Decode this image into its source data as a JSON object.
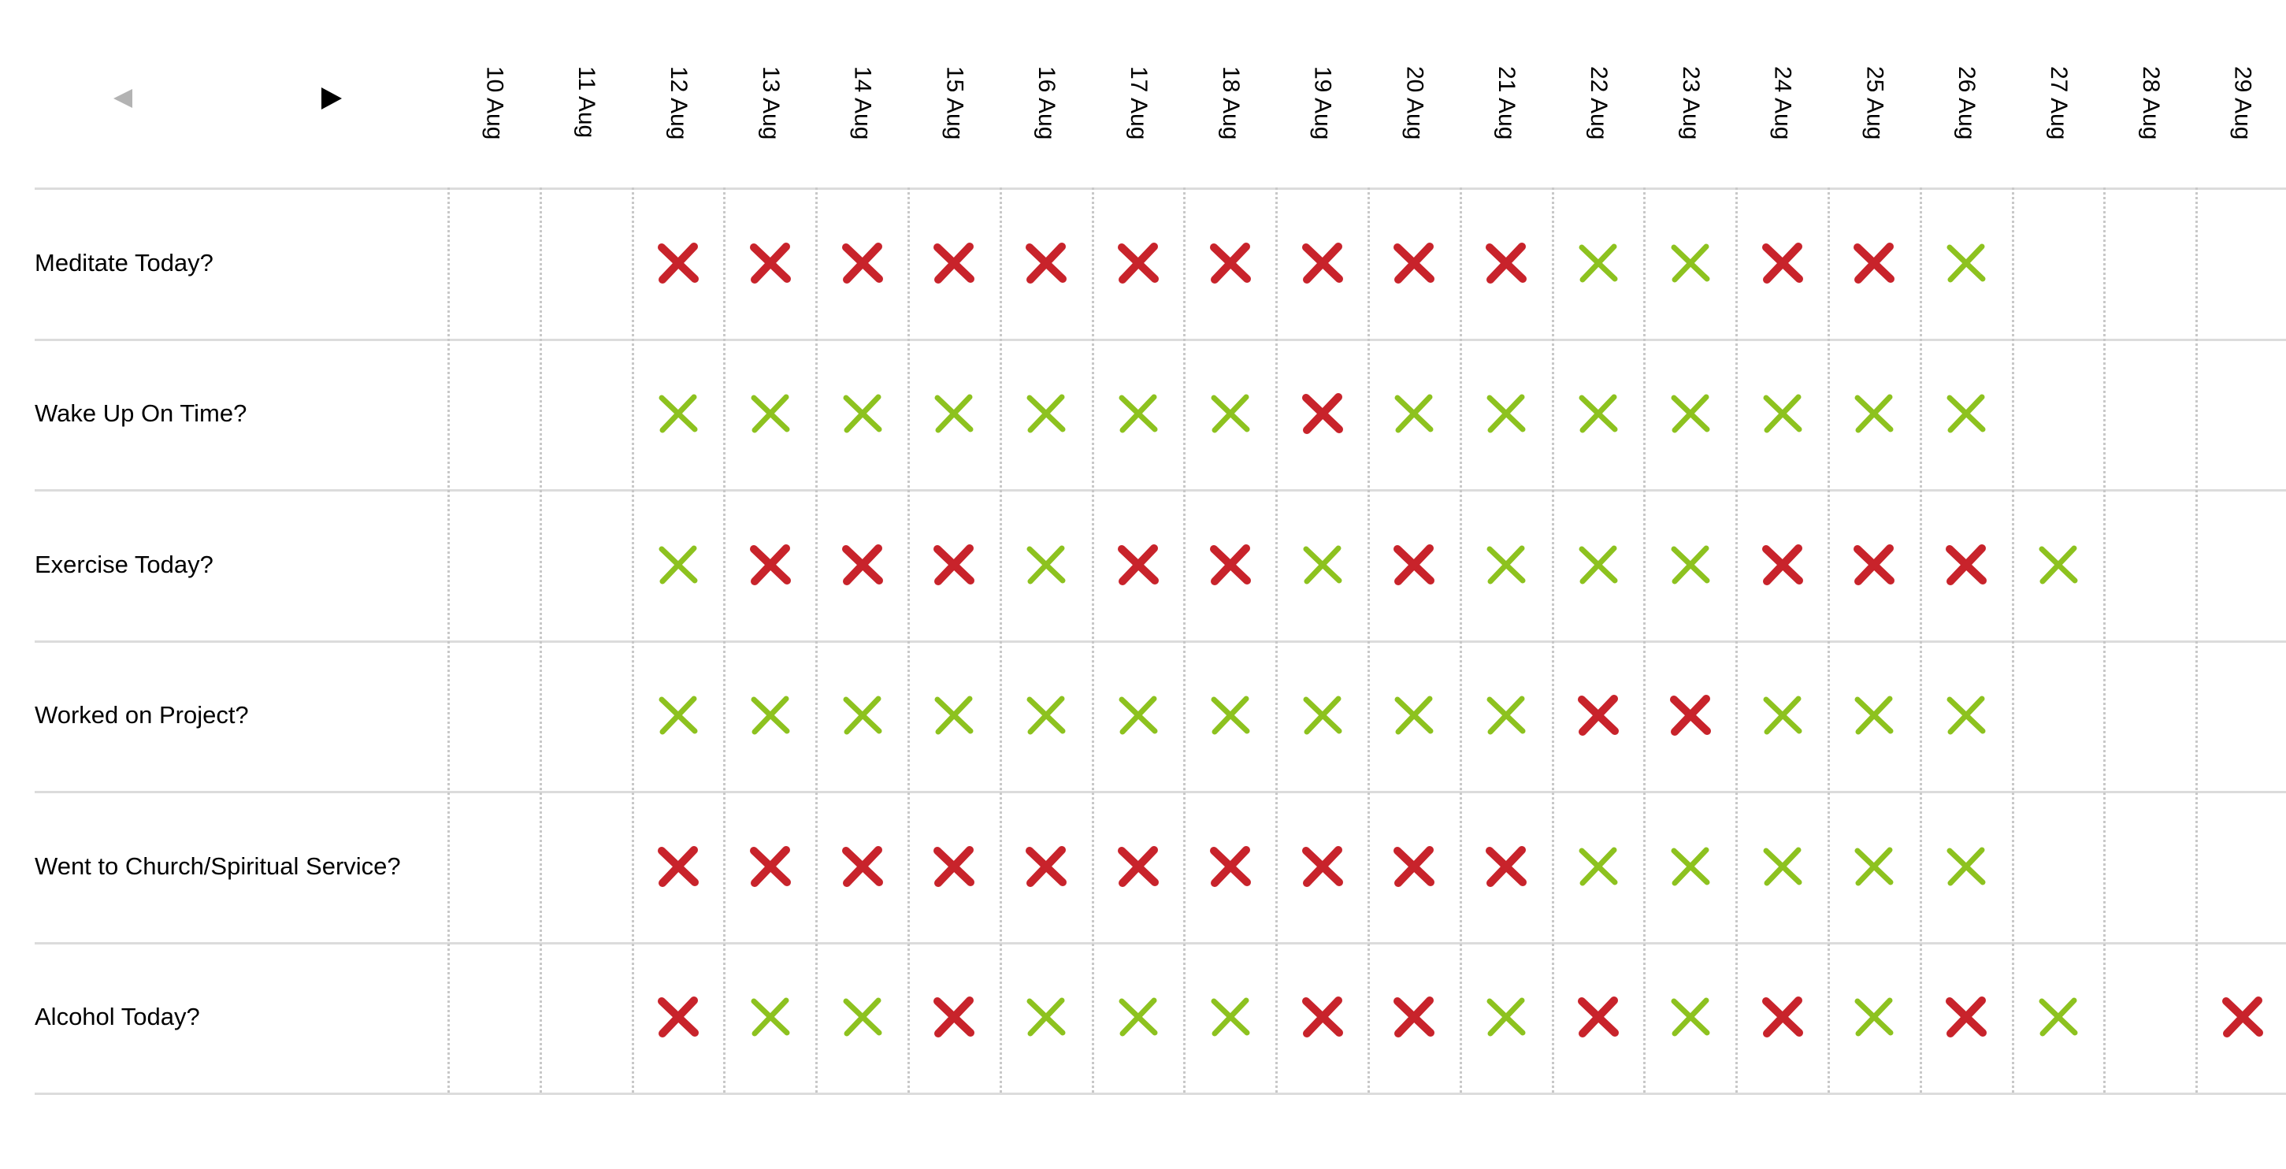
{
  "nav": {
    "prev_icon": "triangle-left-icon",
    "next_icon": "triangle-right-icon",
    "prev_color": "#b3b3b3",
    "next_color": "#000000"
  },
  "dates": [
    "10 Aug",
    "11 Aug",
    "12 Aug",
    "13 Aug",
    "14 Aug",
    "15 Aug",
    "16 Aug",
    "17 Aug",
    "18 Aug",
    "19 Aug",
    "20 Aug",
    "21 Aug",
    "22 Aug",
    "23 Aug",
    "24 Aug",
    "25 Aug",
    "26 Aug",
    "27 Aug",
    "28 Aug",
    "29 Aug"
  ],
  "colors": {
    "yes": "#8dc21f",
    "no": "#c8232b",
    "row_line": "#dcdcdc",
    "col_line": "#c8c8c8"
  },
  "habits": [
    {
      "label": "Meditate Today?",
      "marks": [
        "",
        "",
        "no",
        "no",
        "no",
        "no",
        "no",
        "no",
        "no",
        "no",
        "no",
        "no",
        "yes",
        "yes",
        "no",
        "no",
        "yes",
        "",
        "",
        ""
      ]
    },
    {
      "label": "Wake Up On Time?",
      "marks": [
        "",
        "",
        "yes",
        "yes",
        "yes",
        "yes",
        "yes",
        "yes",
        "yes",
        "no",
        "yes",
        "yes",
        "yes",
        "yes",
        "yes",
        "yes",
        "yes",
        "",
        "",
        ""
      ]
    },
    {
      "label": "Exercise Today?",
      "marks": [
        "",
        "",
        "yes",
        "no",
        "no",
        "no",
        "yes",
        "no",
        "no",
        "yes",
        "no",
        "yes",
        "yes",
        "yes",
        "no",
        "no",
        "no",
        "yes",
        "",
        ""
      ]
    },
    {
      "label": "Worked on Project?",
      "marks": [
        "",
        "",
        "yes",
        "yes",
        "yes",
        "yes",
        "yes",
        "yes",
        "yes",
        "yes",
        "yes",
        "yes",
        "no",
        "no",
        "yes",
        "yes",
        "yes",
        "",
        "",
        ""
      ]
    },
    {
      "label": "Went to Church/Spiritual Service?",
      "marks": [
        "",
        "",
        "no",
        "no",
        "no",
        "no",
        "no",
        "no",
        "no",
        "no",
        "no",
        "no",
        "yes",
        "yes",
        "yes",
        "yes",
        "yes",
        "",
        "",
        ""
      ]
    },
    {
      "label": "Alcohol Today?",
      "marks": [
        "",
        "",
        "no",
        "yes",
        "yes",
        "no",
        "yes",
        "yes",
        "yes",
        "no",
        "no",
        "yes",
        "no",
        "yes",
        "no",
        "yes",
        "no",
        "yes",
        "",
        "no"
      ]
    }
  ]
}
